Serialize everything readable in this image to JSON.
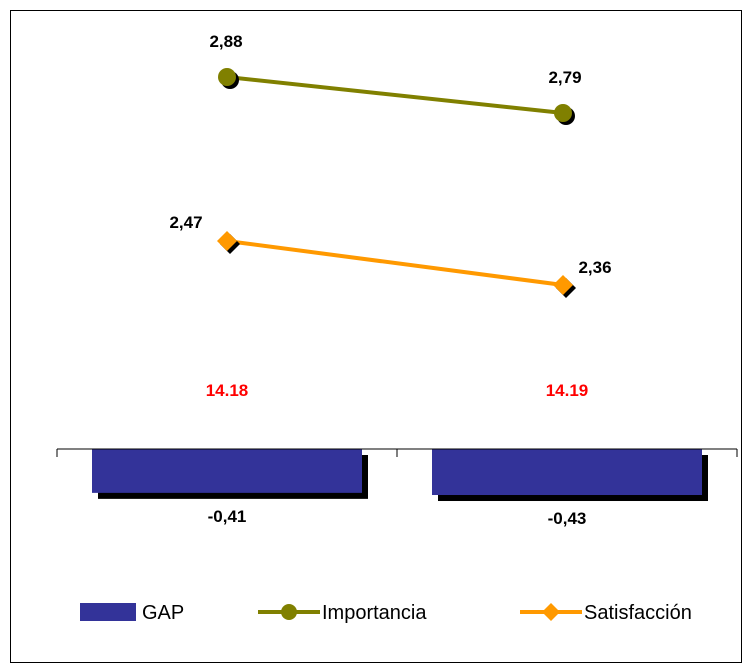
{
  "colors": {
    "gap": "#333399",
    "importancia": "#808000",
    "satisfaccion": "#FF9900",
    "category_label": "#FF0000",
    "shadow": "#000000",
    "frame": "#000000"
  },
  "chart_data": {
    "type": "bar",
    "categories": [
      "14.18",
      "14.19"
    ],
    "series": [
      {
        "name": "GAP",
        "type": "bar",
        "values": [
          -0.41,
          -0.43
        ],
        "labels": [
          "-0,41",
          "-0,43"
        ]
      },
      {
        "name": "Importancia",
        "type": "line",
        "marker": "circle",
        "values": [
          2.88,
          2.79
        ],
        "labels": [
          "2,88",
          "2,79"
        ]
      },
      {
        "name": "Satisfacción",
        "type": "line",
        "marker": "diamond",
        "values": [
          2.47,
          2.36
        ],
        "labels": [
          "2,47",
          "2,36"
        ]
      }
    ],
    "title": "",
    "xlabel": "",
    "ylabel": "",
    "ylim": [
      -0.6,
      3.2
    ],
    "grid": false,
    "legend": "bottom"
  }
}
